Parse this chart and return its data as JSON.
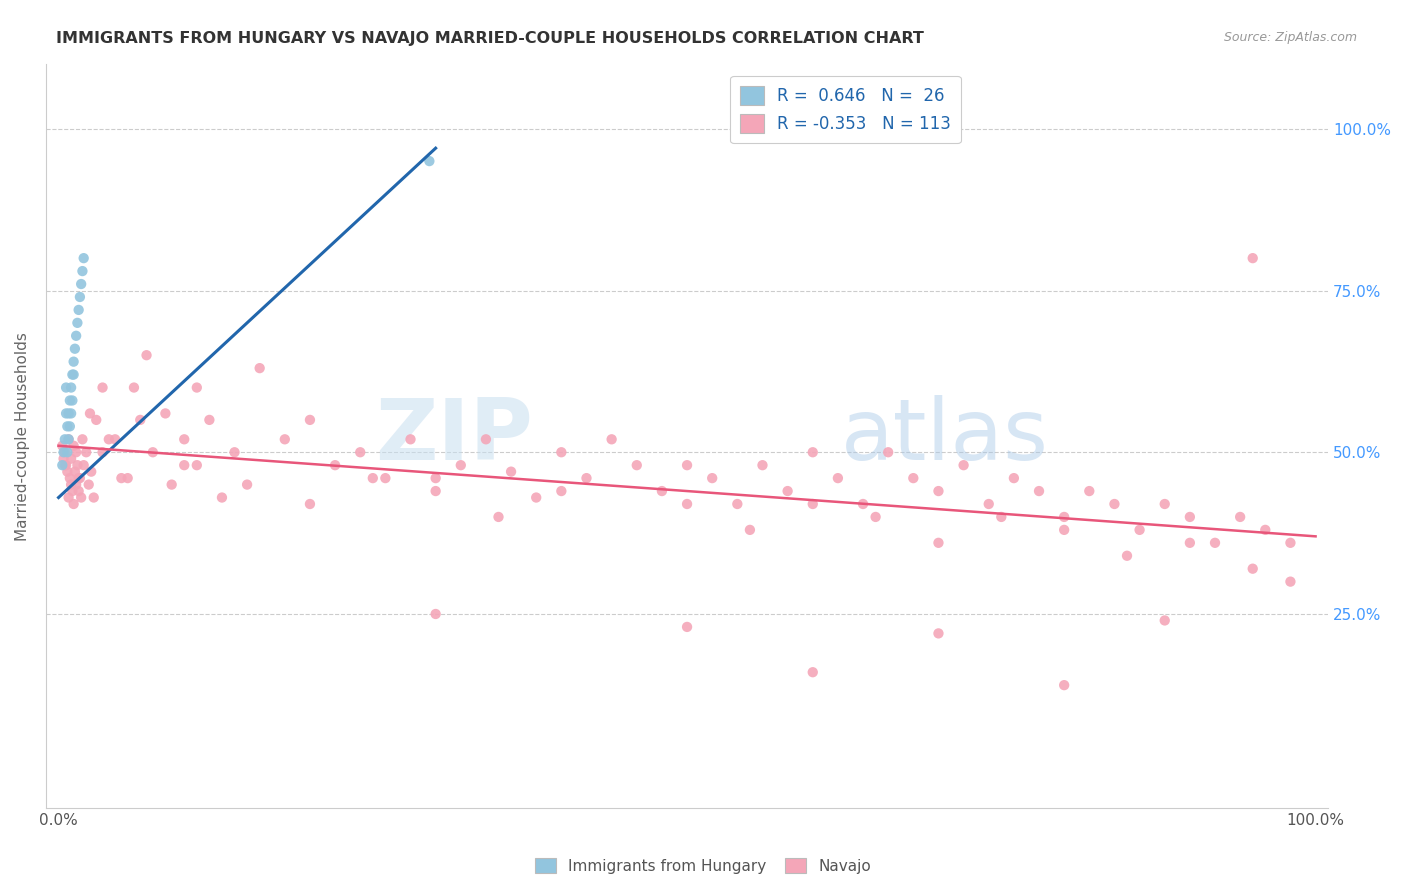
{
  "title": "IMMIGRANTS FROM HUNGARY VS NAVAJO MARRIED-COUPLE HOUSEHOLDS CORRELATION CHART",
  "source": "Source: ZipAtlas.com",
  "ylabel": "Married-couple Households",
  "blue_color": "#92c5de",
  "pink_color": "#f4a6b8",
  "blue_line_color": "#2166ac",
  "pink_line_color": "#e8567a",
  "watermark_zip": "ZIP",
  "watermark_atlas": "atlas",
  "hungary_x": [
    0.003,
    0.004,
    0.005,
    0.006,
    0.006,
    0.007,
    0.007,
    0.008,
    0.008,
    0.009,
    0.009,
    0.01,
    0.01,
    0.011,
    0.011,
    0.012,
    0.012,
    0.013,
    0.014,
    0.015,
    0.016,
    0.017,
    0.018,
    0.019,
    0.02,
    0.295
  ],
  "hungary_y": [
    0.48,
    0.5,
    0.52,
    0.56,
    0.6,
    0.5,
    0.54,
    0.52,
    0.56,
    0.54,
    0.58,
    0.56,
    0.6,
    0.62,
    0.58,
    0.62,
    0.64,
    0.66,
    0.68,
    0.7,
    0.72,
    0.74,
    0.76,
    0.78,
    0.8,
    0.95
  ],
  "navajo_x": [
    0.003,
    0.004,
    0.005,
    0.006,
    0.007,
    0.008,
    0.009,
    0.01,
    0.011,
    0.012,
    0.013,
    0.014,
    0.015,
    0.016,
    0.017,
    0.018,
    0.019,
    0.02,
    0.022,
    0.024,
    0.026,
    0.028,
    0.03,
    0.035,
    0.04,
    0.05,
    0.06,
    0.07,
    0.085,
    0.1,
    0.1,
    0.11,
    0.12,
    0.14,
    0.16,
    0.18,
    0.2,
    0.22,
    0.24,
    0.26,
    0.28,
    0.3,
    0.32,
    0.34,
    0.36,
    0.38,
    0.4,
    0.42,
    0.44,
    0.46,
    0.48,
    0.5,
    0.52,
    0.54,
    0.56,
    0.58,
    0.6,
    0.62,
    0.64,
    0.66,
    0.68,
    0.7,
    0.72,
    0.74,
    0.76,
    0.78,
    0.8,
    0.82,
    0.84,
    0.86,
    0.88,
    0.9,
    0.92,
    0.94,
    0.96,
    0.98,
    0.005,
    0.008,
    0.01,
    0.012,
    0.014,
    0.016,
    0.025,
    0.035,
    0.045,
    0.055,
    0.065,
    0.075,
    0.09,
    0.11,
    0.13,
    0.15,
    0.2,
    0.25,
    0.3,
    0.35,
    0.4,
    0.5,
    0.55,
    0.6,
    0.65,
    0.7,
    0.75,
    0.8,
    0.85,
    0.9,
    0.95,
    0.98,
    0.3,
    0.5,
    0.7,
    0.88,
    0.95,
    0.6,
    0.8
  ],
  "navajo_y": [
    0.51,
    0.49,
    0.5,
    0.48,
    0.47,
    0.52,
    0.46,
    0.49,
    0.44,
    0.51,
    0.47,
    0.45,
    0.48,
    0.44,
    0.46,
    0.43,
    0.52,
    0.48,
    0.5,
    0.45,
    0.47,
    0.43,
    0.55,
    0.6,
    0.52,
    0.46,
    0.6,
    0.65,
    0.56,
    0.52,
    0.48,
    0.6,
    0.55,
    0.5,
    0.63,
    0.52,
    0.55,
    0.48,
    0.5,
    0.46,
    0.52,
    0.46,
    0.48,
    0.52,
    0.47,
    0.43,
    0.5,
    0.46,
    0.52,
    0.48,
    0.44,
    0.48,
    0.46,
    0.42,
    0.48,
    0.44,
    0.5,
    0.46,
    0.42,
    0.5,
    0.46,
    0.44,
    0.48,
    0.42,
    0.46,
    0.44,
    0.4,
    0.44,
    0.42,
    0.38,
    0.42,
    0.4,
    0.36,
    0.4,
    0.38,
    0.36,
    0.48,
    0.43,
    0.45,
    0.42,
    0.5,
    0.46,
    0.56,
    0.5,
    0.52,
    0.46,
    0.55,
    0.5,
    0.45,
    0.48,
    0.43,
    0.45,
    0.42,
    0.46,
    0.44,
    0.4,
    0.44,
    0.42,
    0.38,
    0.42,
    0.4,
    0.36,
    0.4,
    0.38,
    0.34,
    0.36,
    0.32,
    0.3,
    0.25,
    0.23,
    0.22,
    0.24,
    0.8,
    0.16,
    0.14
  ],
  "blue_trendline_x": [
    0.0,
    0.3
  ],
  "blue_trendline_y": [
    0.43,
    0.97
  ],
  "pink_trendline_x": [
    0.0,
    1.0
  ],
  "pink_trendline_y": [
    0.51,
    0.37
  ],
  "xlim": [
    0.0,
    1.0
  ],
  "ylim": [
    -0.05,
    1.1
  ],
  "yticks": [
    0.25,
    0.5,
    0.75,
    1.0
  ],
  "ytick_labels": [
    "25.0%",
    "50.0%",
    "75.0%",
    "100.0%"
  ],
  "xtick_labels_show": [
    "0.0%",
    "100.0%"
  ],
  "xtick_positions": [
    0.0,
    0.25,
    0.5,
    0.75,
    1.0
  ]
}
